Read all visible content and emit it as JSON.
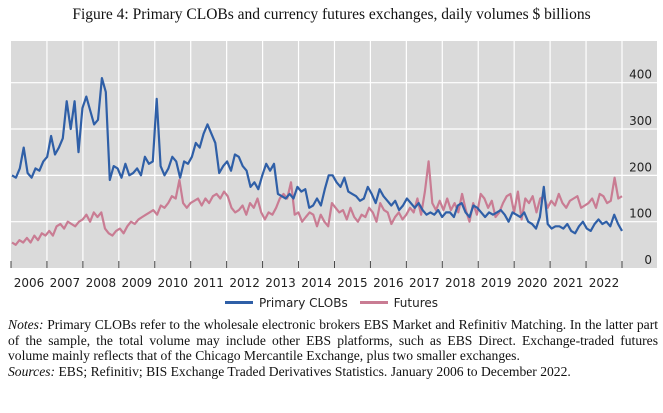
{
  "title": "Figure 4: Primary CLOBs and currency futures exchanges, daily volumes $ billions",
  "legend": [
    {
      "name": "Primary CLOBs",
      "color": "#2f5fa7"
    },
    {
      "name": "Futures",
      "color": "#c97c93"
    }
  ],
  "notes": {
    "notes_label": "Notes:",
    "notes_text": "Primary CLOBs refer to the wholesale electronic brokers EBS Market and Refinitiv Matching. In the latter part of the sample, the total volume may include other EBS platforms, such as EBS Direct. Exchange-traded futures volume mainly reflects that of the Chicago Mercantile Exchange, plus two smaller exchanges.",
    "sources_label": "Sources:",
    "sources_text": "EBS; Refinitiv; BIS Exchange Traded Derivatives Statistics. January 2006 to December 2022."
  },
  "chart_data": {
    "type": "line",
    "title": "Figure 4: Primary CLOBs and currency futures exchanges, daily volumes $ billions",
    "xlabel": "",
    "ylabel": "",
    "x_start": "2006-01",
    "x_end": "2022-12",
    "frequency": "quarterly (approximate trace)",
    "x_tick_labels": [
      "2006",
      "2007",
      "2008",
      "2009",
      "2010",
      "2011",
      "2012",
      "2013",
      "2014",
      "2015",
      "2016",
      "2017",
      "2018",
      "2019",
      "2020",
      "2021",
      "2022"
    ],
    "y_ticks": [
      0,
      100,
      200,
      300,
      400
    ],
    "ylim": [
      0,
      490
    ],
    "y_axis_side": "right",
    "grid": true,
    "legend_position": "bottom",
    "series": [
      {
        "name": "Primary CLOBs",
        "values": [
          200,
          195,
          215,
          260,
          205,
          195,
          215,
          210,
          230,
          240,
          285,
          245,
          260,
          280,
          360,
          300,
          360,
          250,
          345,
          370,
          340,
          310,
          320,
          410,
          380,
          190,
          220,
          215,
          195,
          225,
          200,
          205,
          215,
          200,
          240,
          225,
          230,
          365,
          220,
          200,
          215,
          240,
          230,
          195,
          230,
          225,
          240,
          270,
          260,
          290,
          310,
          290,
          270,
          205,
          220,
          230,
          210,
          245,
          240,
          220,
          210,
          175,
          185,
          170,
          200,
          225,
          210,
          225,
          160,
          155,
          150,
          160,
          150,
          175,
          165,
          170,
          130,
          135,
          150,
          135,
          170,
          200,
          200,
          185,
          175,
          195,
          165,
          160,
          155,
          145,
          150,
          175,
          160,
          140,
          170,
          155,
          145,
          135,
          145,
          125,
          135,
          150,
          140,
          130,
          140,
          125,
          115,
          120,
          115,
          125,
          110,
          120,
          120,
          110,
          135,
          140,
          120,
          110,
          135,
          130,
          120,
          110,
          120,
          115,
          120,
          125,
          115,
          100,
          120,
          115,
          110,
          120,
          100,
          95,
          85,
          110,
          175,
          95,
          85,
          90,
          90,
          85,
          95,
          80,
          75,
          90,
          100,
          85,
          80,
          95,
          105,
          95,
          100,
          90,
          115,
          95,
          80
        ],
        "color": "#2f5fa7"
      },
      {
        "name": "Futures",
        "values": [
          55,
          50,
          60,
          55,
          65,
          55,
          70,
          60,
          75,
          70,
          80,
          70,
          90,
          95,
          85,
          100,
          95,
          90,
          100,
          105,
          115,
          100,
          120,
          110,
          120,
          85,
          75,
          70,
          80,
          85,
          75,
          90,
          100,
          95,
          105,
          110,
          115,
          120,
          125,
          115,
          135,
          130,
          140,
          155,
          150,
          190,
          140,
          130,
          140,
          145,
          150,
          135,
          150,
          140,
          155,
          160,
          150,
          165,
          155,
          130,
          120,
          125,
          135,
          115,
          140,
          130,
          150,
          120,
          105,
          120,
          115,
          130,
          150,
          160,
          150,
          185,
          115,
          120,
          100,
          110,
          120,
          115,
          90,
          115,
          100,
          90,
          140,
          130,
          120,
          125,
          105,
          130,
          110,
          100,
          115,
          110,
          130,
          120,
          100,
          140,
          125,
          120,
          95,
          110,
          120,
          105,
          115,
          130,
          120,
          150,
          115,
          165,
          230,
          140,
          125,
          145,
          125,
          150,
          125,
          140,
          120,
          160,
          125,
          100,
          140,
          115,
          160,
          150,
          130,
          145,
          110,
          120,
          140,
          155,
          160,
          120,
          165,
          105,
          150,
          140,
          155,
          120,
          150,
          155,
          130,
          145,
          135,
          160,
          140,
          130,
          145,
          150,
          155,
          130,
          135,
          140,
          150,
          130,
          160,
          155,
          140,
          145,
          195,
          150,
          155
        ],
        "color": "#c97c93"
      }
    ]
  }
}
